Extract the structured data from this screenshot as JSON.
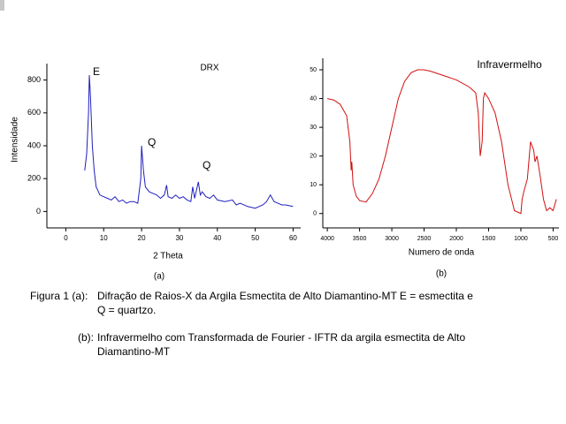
{
  "chart_data": [
    {
      "type": "line",
      "title": "DRX",
      "xlabel": "2 Theta",
      "ylabel": "Intensidade",
      "panel": "(a)",
      "annotations": [
        "E",
        "Q",
        "Q"
      ],
      "color": "#1f1fbf",
      "x": [
        5,
        5.5,
        6,
        6.2,
        6.5,
        7,
        7.5,
        8,
        9,
        10,
        11,
        12,
        13,
        14,
        15,
        16,
        17,
        18,
        19,
        19.8,
        20,
        20.5,
        21,
        22,
        23,
        24,
        25,
        26,
        26.6,
        27,
        28,
        29,
        30,
        31,
        32,
        33,
        33.5,
        34,
        35,
        35.5,
        36,
        37,
        38,
        39,
        40,
        42,
        44,
        45,
        46,
        48,
        50,
        51,
        52,
        53,
        54,
        55,
        56,
        57,
        58,
        60
      ],
      "values": [
        250,
        350,
        600,
        830,
        700,
        400,
        250,
        150,
        100,
        90,
        80,
        70,
        90,
        60,
        70,
        50,
        60,
        60,
        50,
        200,
        400,
        250,
        150,
        120,
        110,
        100,
        80,
        100,
        160,
        90,
        80,
        100,
        80,
        90,
        70,
        60,
        150,
        80,
        180,
        100,
        120,
        90,
        80,
        100,
        70,
        60,
        70,
        40,
        50,
        30,
        20,
        30,
        40,
        60,
        100,
        60,
        50,
        40,
        40,
        30
      ],
      "xlim": [
        -5,
        62
      ],
      "ylim": [
        -100,
        900
      ],
      "xticks": [
        0,
        10,
        20,
        30,
        40,
        50,
        60
      ],
      "yticks": [
        0,
        200,
        400,
        600,
        800
      ]
    },
    {
      "type": "line",
      "title": "Infravermelho",
      "xlabel": "Numero de onda",
      "panel": "(b)",
      "color": "#d01010",
      "x": [
        4000,
        3900,
        3800,
        3700,
        3650,
        3630,
        3620,
        3600,
        3550,
        3500,
        3400,
        3300,
        3200,
        3100,
        3000,
        2900,
        2800,
        2700,
        2600,
        2500,
        2400,
        2200,
        2000,
        1800,
        1700,
        1660,
        1630,
        1600,
        1580,
        1560,
        1500,
        1400,
        1300,
        1200,
        1100,
        1000,
        980,
        950,
        900,
        850,
        800,
        780,
        750,
        700,
        650,
        600,
        550,
        500,
        450
      ],
      "values": [
        40,
        39.5,
        38,
        34,
        25,
        15,
        18,
        10,
        6,
        4.5,
        4,
        7,
        12,
        20,
        30,
        40,
        46,
        49,
        50,
        50,
        49.5,
        48,
        46.5,
        44,
        42,
        35,
        20,
        25,
        40,
        42,
        40,
        35,
        25,
        10,
        1,
        0,
        5,
        8,
        12,
        25,
        22,
        18,
        20,
        13,
        5,
        1,
        2,
        1,
        5
      ],
      "xlim": [
        4070,
        410
      ],
      "ylim": [
        -5,
        54
      ],
      "xticks": [
        4000,
        3500,
        3000,
        2500,
        2000,
        1500,
        1000,
        500
      ],
      "yticks": [
        0,
        10,
        20,
        30,
        40,
        50
      ]
    }
  ],
  "caption": {
    "label_a": "Figura 1 (a):",
    "text_a": [
      "Difração de Raios-X da Argila Esmectita de Alto Diamantino-MT E = esmectita e",
      "Q = quartzo."
    ],
    "label_b": "(b):",
    "text_b": [
      "Infravermelho com Transformada de Fourier - IFTR da argila esmectita de Alto",
      "Diamantino-MT"
    ]
  }
}
